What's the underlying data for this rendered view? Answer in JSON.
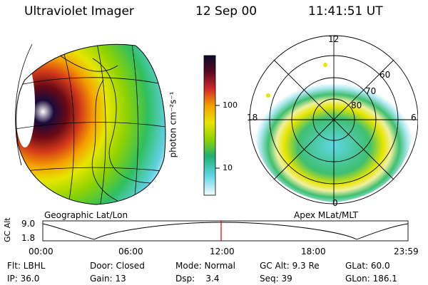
{
  "header": {
    "instrument": "Ultraviolet Imager",
    "date": "12 Sep 00",
    "time": "11:41:51 UT"
  },
  "colorbar": {
    "label": "photon cm⁻²s⁻¹",
    "ticks": [
      "100",
      "10"
    ]
  },
  "geo_panel": {
    "caption": "Geographic Lat/Lon"
  },
  "polar_panel": {
    "caption": "Apex MLat/MLT",
    "mlt_labels": {
      "top": "12",
      "left": "18",
      "right": "6",
      "bottom": "0"
    },
    "lat_labels": [
      "60",
      "70",
      "80"
    ]
  },
  "timeline": {
    "ylabel": "GC Alt",
    "y_ticks": [
      "9.0",
      "1.8"
    ],
    "x_ticks": [
      "00:00",
      "06:00",
      "12:00",
      "18:00",
      "23:59"
    ],
    "marker_color": "#e00000"
  },
  "status": {
    "row1": {
      "flt": "Flt: LBHL",
      "door": "Door: Closed",
      "mode": "Mode: Normal",
      "gc_alt": "GC Alt: 9.3 Re",
      "glat": "GLat: 60.0"
    },
    "row2": {
      "ip": "IP: 36.0",
      "gain": "Gain: 13",
      "dsp": "Dsp:    3.4",
      "seq": "Seq: 39",
      "glon": "GLon: 186.1"
    }
  }
}
